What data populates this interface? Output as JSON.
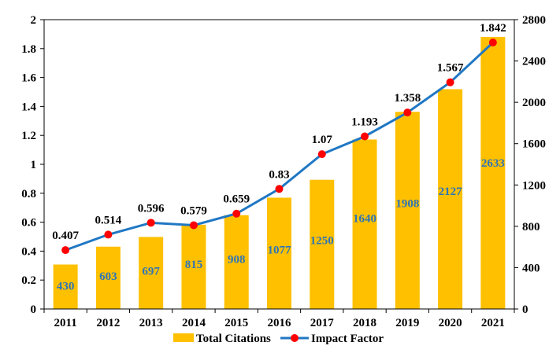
{
  "chart_data": {
    "type": "bar+line",
    "title": "",
    "xlabel": "",
    "ylabel": "",
    "y2label": "",
    "categories": [
      "2011",
      "2012",
      "2013",
      "2014",
      "2015",
      "2016",
      "2017",
      "2018",
      "2019",
      "2020",
      "2021"
    ],
    "series": [
      {
        "name": "Total Citations",
        "type": "bar",
        "axis": "right",
        "color": "#ffc000",
        "values": [
          430,
          603,
          697,
          815,
          908,
          1077,
          1250,
          1640,
          1908,
          2127,
          2633
        ]
      },
      {
        "name": "Impact Factor",
        "type": "line",
        "axis": "left",
        "color": "#1f77c4",
        "marker_color": "#ff0000",
        "values": [
          0.407,
          0.514,
          0.596,
          0.579,
          0.659,
          0.83,
          1.07,
          1.193,
          1.358,
          1.567,
          1.842
        ]
      }
    ],
    "ylim_left": [
      0,
      2
    ],
    "yticks_left": [
      "0",
      "0.2",
      "0.4",
      "0.6",
      "0.8",
      "1",
      "1.2",
      "1.4",
      "1.6",
      "1.8",
      "2"
    ],
    "ylim_right": [
      0,
      2800
    ],
    "yticks_right": [
      "0",
      "400",
      "800",
      "1200",
      "1600",
      "2000",
      "2400",
      "2800"
    ],
    "grid": false,
    "legend_position": "bottom"
  }
}
